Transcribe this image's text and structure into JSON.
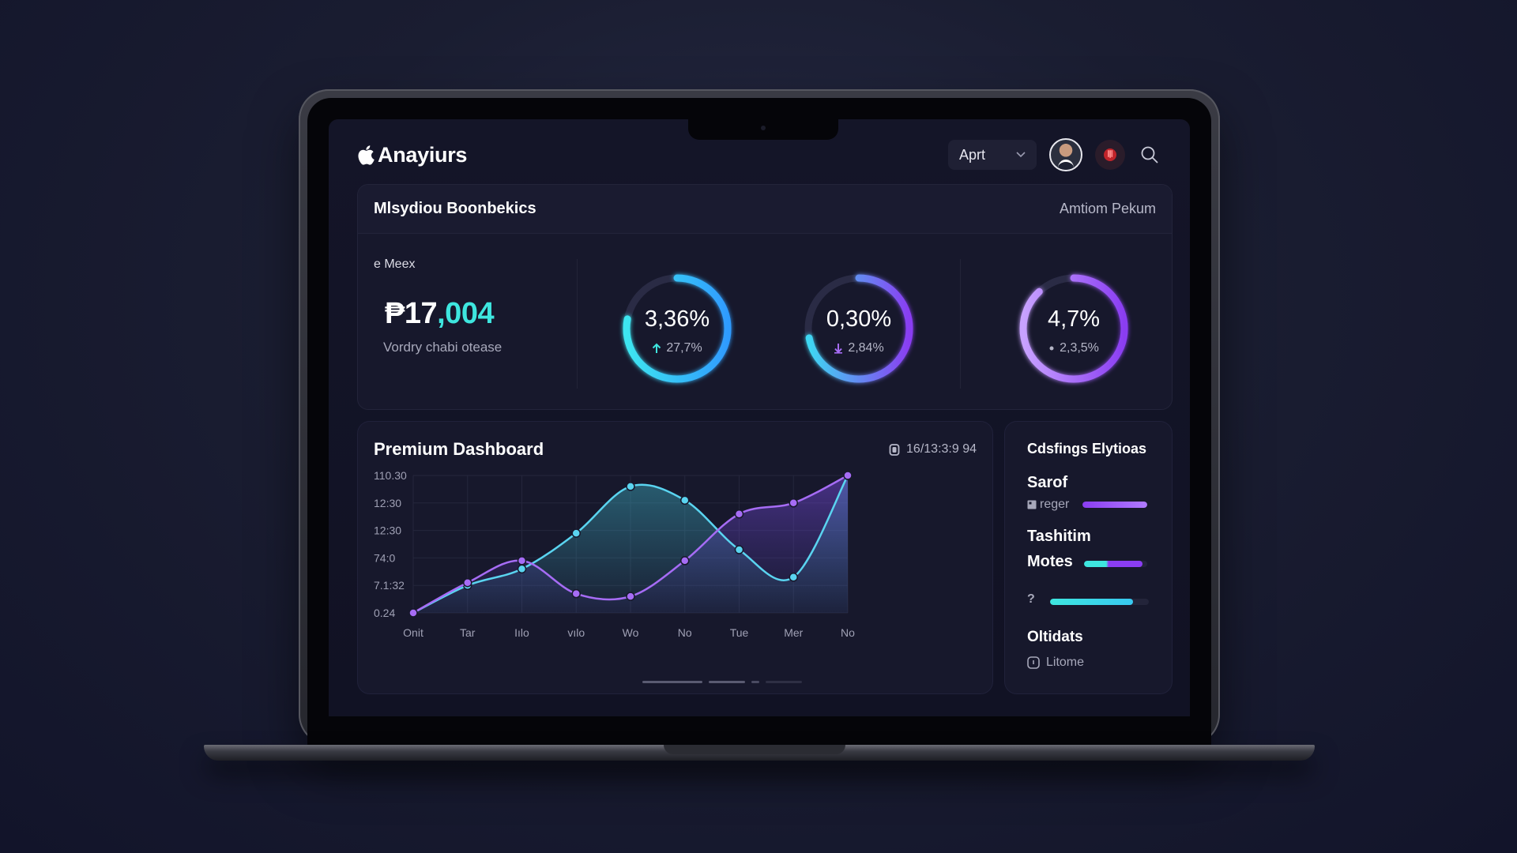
{
  "app": {
    "brand_name": "Anayiurs",
    "month_select": "Aprt"
  },
  "stats": {
    "title": "Mlsydiou Boonbekics",
    "right_label": "Amtiom Pekum",
    "metric": {
      "label": "e Meex",
      "value_prefix": "₱17",
      "value_accent": ",004",
      "sub": "Vordry chabi otease"
    },
    "rings": [
      {
        "value": "3,36%",
        "change": "27,7%",
        "change_icon": "arrow-up-icon",
        "progress": 0.78,
        "colors": [
          "#3ee6f0",
          "#2f9bff"
        ]
      },
      {
        "value": "0,30%",
        "change": "2,84%",
        "change_icon": "arrow-down-icon",
        "progress": 0.72,
        "colors": [
          "#3ed8f2",
          "#8a3df2"
        ]
      },
      {
        "value": "4,7%",
        "change": "2,3,5%",
        "change_icon": "dot-icon",
        "progress": 0.88,
        "colors": [
          "#c8a2ff",
          "#8a3df2"
        ]
      }
    ]
  },
  "dashboard": {
    "title": "Premium Dashboard",
    "timestamp": "16/13:3:9 94"
  },
  "chart_data": {
    "type": "line",
    "categories": [
      "Onit",
      "Tar",
      "Iılo",
      "vılo",
      "Wo",
      "No",
      "Tue",
      "Mer",
      "No"
    ],
    "y_tick_labels": [
      "110.30",
      "12:30",
      "12:30",
      "74:0",
      "7.1:32",
      "0.24"
    ],
    "series": [
      {
        "color": "#5ad4f0",
        "values": [
          0.0,
          0.2,
          0.32,
          0.58,
          0.92,
          0.82,
          0.46,
          0.26,
          1.0
        ]
      },
      {
        "color": "#a66cf5",
        "values": [
          0.0,
          0.22,
          0.38,
          0.14,
          0.12,
          0.38,
          0.72,
          0.8,
          1.0
        ]
      }
    ],
    "grid": true
  },
  "side": {
    "title": "Cdsfings Elytioas",
    "items": [
      {
        "title": "Sarof",
        "sub": "reger",
        "progress": 1.0
      },
      {
        "title": "Tashitim",
        "title2": "Motes",
        "progress": 0.92
      },
      {
        "title": "?",
        "progress": 0.84
      },
      {
        "title": "Oltidats",
        "sub": "Litome"
      }
    ]
  },
  "colors": {
    "background": "#161830",
    "card": "#17182c",
    "teal": "#3ee6df",
    "purple": "#8a3df2",
    "lavender": "#c8a2ff"
  }
}
